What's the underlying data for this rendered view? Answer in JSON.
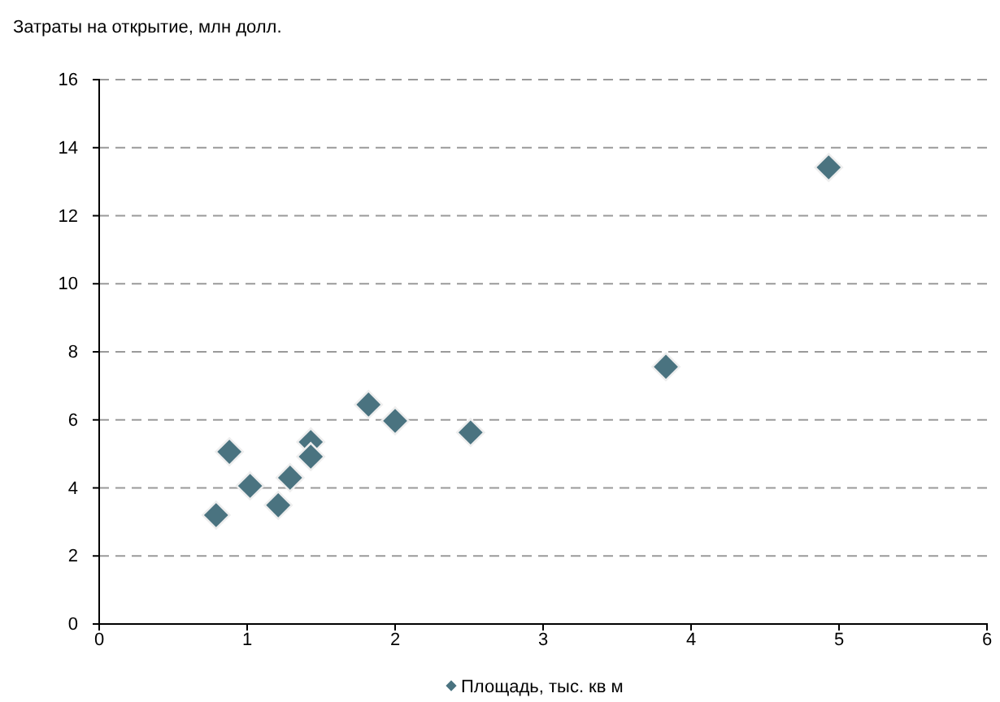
{
  "chart_data": {
    "type": "scatter",
    "ylabel": "Затраты на открытие, млн долл.",
    "xlim": [
      0,
      6
    ],
    "xticks": [
      0,
      1,
      2,
      3,
      4,
      5,
      6
    ],
    "ylim": [
      0,
      16
    ],
    "yticks": [
      0,
      2,
      4,
      6,
      8,
      10,
      12,
      14,
      16
    ],
    "grid": "y",
    "legend": "bottom",
    "marker": "diamond",
    "series": [
      {
        "name": "Площадь, тыс. кв м",
        "color": "#4a7380",
        "x": [
          0.79,
          0.88,
          1.02,
          1.21,
          1.29,
          1.43,
          1.43,
          1.82,
          2.0,
          2.51,
          3.83,
          4.93
        ],
        "values": [
          3.2,
          5.06,
          4.06,
          3.49,
          4.3,
          5.35,
          4.92,
          6.45,
          5.97,
          5.63,
          7.56,
          13.42
        ]
      }
    ]
  }
}
